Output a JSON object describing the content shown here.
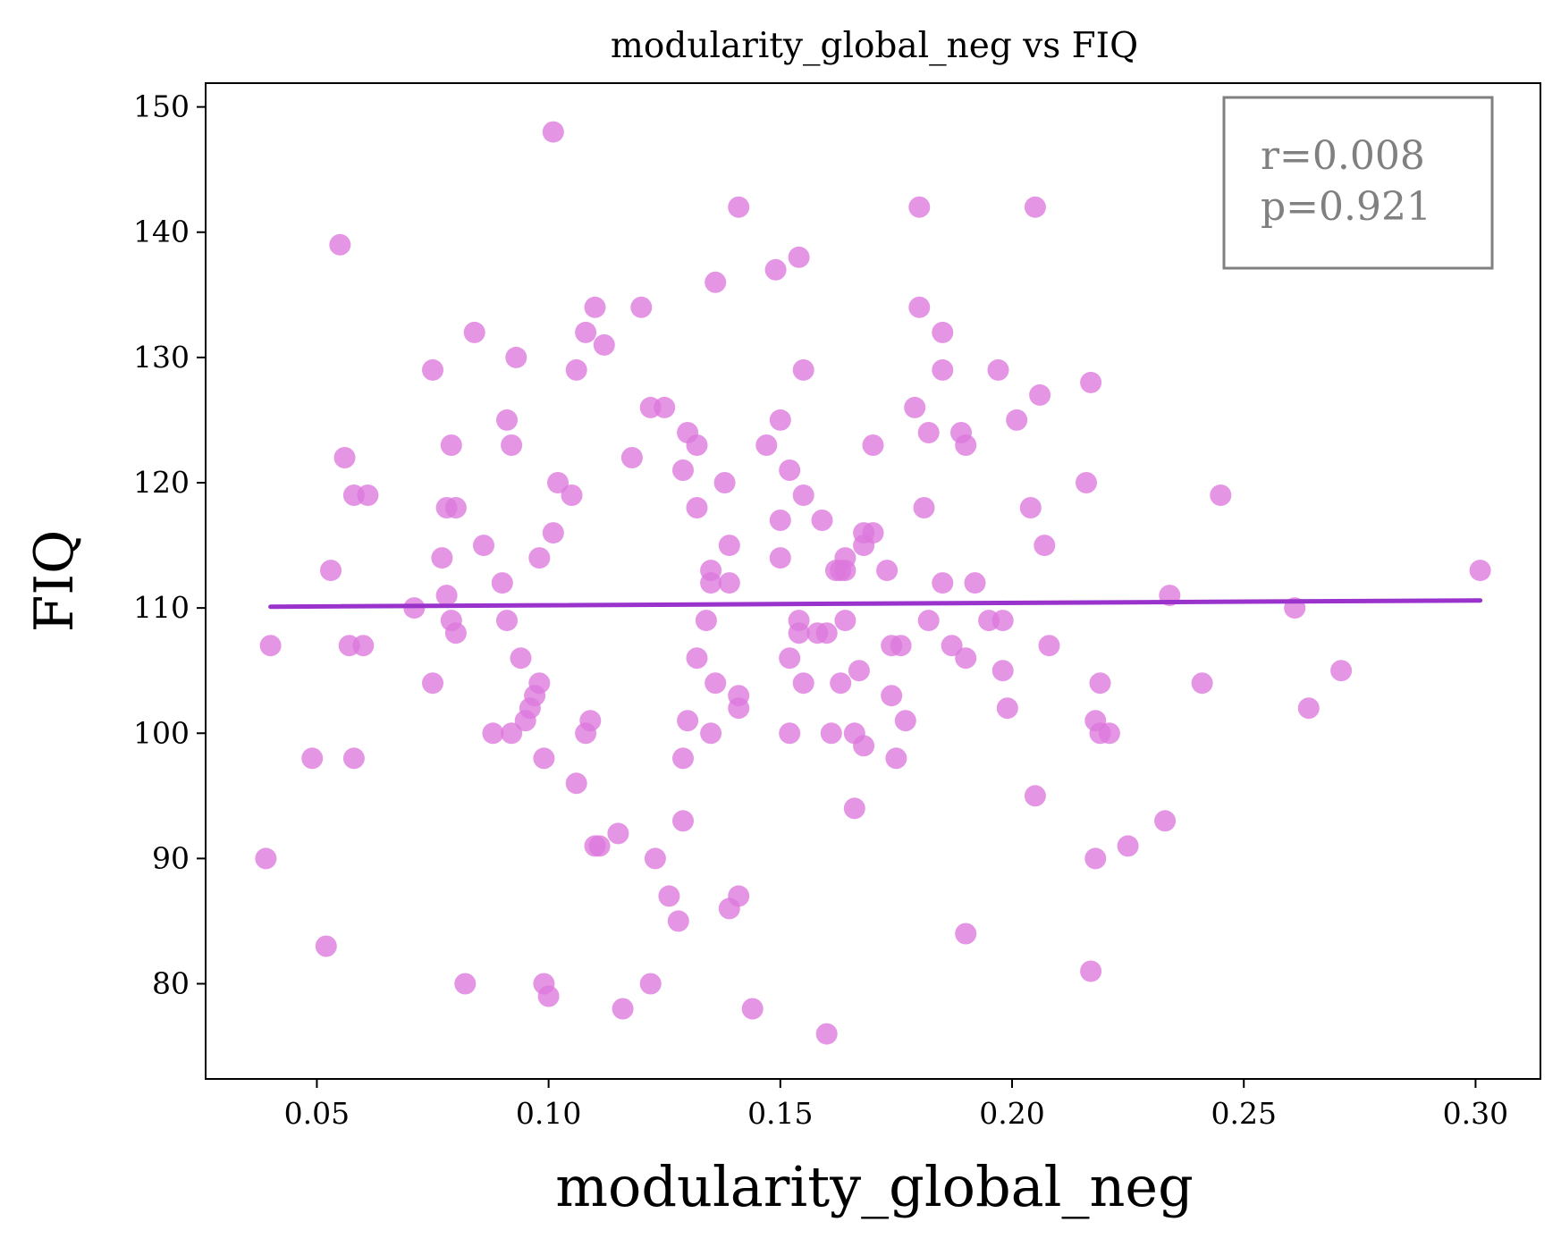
{
  "chart_data": {
    "type": "scatter",
    "title": "modularity_global_neg vs FIQ",
    "xlabel": "modularity_global_neg",
    "ylabel": "FIQ",
    "xlim": [
      0.026,
      0.314
    ],
    "ylim": [
      72.4,
      151.9
    ],
    "xticks": [
      0.05,
      0.1,
      0.15,
      0.2,
      0.25,
      0.3
    ],
    "xtick_labels": [
      "0.05",
      "0.10",
      "0.15",
      "0.20",
      "0.25",
      "0.30"
    ],
    "yticks": [
      80,
      90,
      100,
      110,
      120,
      130,
      140,
      150
    ],
    "ytick_labels": [
      "80",
      "90",
      "100",
      "110",
      "120",
      "130",
      "140",
      "150"
    ],
    "grid": false,
    "point_color": "#dd77dd",
    "line_color": "#9933cc",
    "points": [
      [
        0.039,
        90
      ],
      [
        0.04,
        107
      ],
      [
        0.049,
        98
      ],
      [
        0.052,
        83
      ],
      [
        0.053,
        113
      ],
      [
        0.055,
        139
      ],
      [
        0.056,
        122
      ],
      [
        0.057,
        107
      ],
      [
        0.058,
        119
      ],
      [
        0.058,
        98
      ],
      [
        0.06,
        107
      ],
      [
        0.061,
        119
      ],
      [
        0.071,
        110
      ],
      [
        0.075,
        129
      ],
      [
        0.075,
        104
      ],
      [
        0.077,
        114
      ],
      [
        0.078,
        111
      ],
      [
        0.078,
        118
      ],
      [
        0.079,
        109
      ],
      [
        0.079,
        123
      ],
      [
        0.08,
        118
      ],
      [
        0.08,
        108
      ],
      [
        0.082,
        80
      ],
      [
        0.084,
        132
      ],
      [
        0.086,
        115
      ],
      [
        0.088,
        100
      ],
      [
        0.09,
        112
      ],
      [
        0.091,
        125
      ],
      [
        0.091,
        109
      ],
      [
        0.092,
        123
      ],
      [
        0.092,
        100
      ],
      [
        0.093,
        130
      ],
      [
        0.094,
        106
      ],
      [
        0.095,
        101
      ],
      [
        0.096,
        102
      ],
      [
        0.097,
        103
      ],
      [
        0.098,
        104
      ],
      [
        0.098,
        114
      ],
      [
        0.099,
        98
      ],
      [
        0.099,
        80
      ],
      [
        0.1,
        79
      ],
      [
        0.101,
        148
      ],
      [
        0.101,
        116
      ],
      [
        0.102,
        120
      ],
      [
        0.105,
        119
      ],
      [
        0.106,
        129
      ],
      [
        0.106,
        96
      ],
      [
        0.108,
        100
      ],
      [
        0.108,
        132
      ],
      [
        0.109,
        101
      ],
      [
        0.11,
        134
      ],
      [
        0.11,
        91
      ],
      [
        0.111,
        91
      ],
      [
        0.112,
        131
      ],
      [
        0.115,
        92
      ],
      [
        0.116,
        78
      ],
      [
        0.118,
        122
      ],
      [
        0.12,
        134
      ],
      [
        0.122,
        126
      ],
      [
        0.122,
        80
      ],
      [
        0.123,
        90
      ],
      [
        0.125,
        126
      ],
      [
        0.126,
        87
      ],
      [
        0.128,
        85
      ],
      [
        0.129,
        121
      ],
      [
        0.129,
        93
      ],
      [
        0.129,
        98
      ],
      [
        0.13,
        124
      ],
      [
        0.13,
        101
      ],
      [
        0.132,
        123
      ],
      [
        0.132,
        118
      ],
      [
        0.132,
        106
      ],
      [
        0.134,
        109
      ],
      [
        0.135,
        112
      ],
      [
        0.135,
        113
      ],
      [
        0.136,
        136
      ],
      [
        0.135,
        100
      ],
      [
        0.136,
        104
      ],
      [
        0.138,
        120
      ],
      [
        0.139,
        112
      ],
      [
        0.139,
        115
      ],
      [
        0.139,
        86
      ],
      [
        0.141,
        103
      ],
      [
        0.141,
        102
      ],
      [
        0.141,
        142
      ],
      [
        0.141,
        87
      ],
      [
        0.144,
        78
      ],
      [
        0.147,
        123
      ],
      [
        0.149,
        137
      ],
      [
        0.15,
        125
      ],
      [
        0.15,
        117
      ],
      [
        0.15,
        114
      ],
      [
        0.152,
        121
      ],
      [
        0.152,
        106
      ],
      [
        0.152,
        100
      ],
      [
        0.154,
        138
      ],
      [
        0.154,
        108
      ],
      [
        0.154,
        109
      ],
      [
        0.155,
        129
      ],
      [
        0.155,
        119
      ],
      [
        0.155,
        104
      ],
      [
        0.158,
        108
      ],
      [
        0.159,
        117
      ],
      [
        0.16,
        108
      ],
      [
        0.16,
        76
      ],
      [
        0.161,
        100
      ],
      [
        0.162,
        113
      ],
      [
        0.163,
        104
      ],
      [
        0.163,
        113
      ],
      [
        0.164,
        113
      ],
      [
        0.164,
        109
      ],
      [
        0.164,
        114
      ],
      [
        0.166,
        100
      ],
      [
        0.166,
        94
      ],
      [
        0.167,
        105
      ],
      [
        0.168,
        115
      ],
      [
        0.168,
        99
      ],
      [
        0.168,
        116
      ],
      [
        0.17,
        116
      ],
      [
        0.17,
        123
      ],
      [
        0.173,
        113
      ],
      [
        0.174,
        107
      ],
      [
        0.174,
        103
      ],
      [
        0.175,
        98
      ],
      [
        0.176,
        107
      ],
      [
        0.177,
        101
      ],
      [
        0.179,
        126
      ],
      [
        0.18,
        142
      ],
      [
        0.18,
        134
      ],
      [
        0.181,
        118
      ],
      [
        0.182,
        109
      ],
      [
        0.182,
        124
      ],
      [
        0.185,
        112
      ],
      [
        0.185,
        129
      ],
      [
        0.185,
        132
      ],
      [
        0.187,
        107
      ],
      [
        0.189,
        124
      ],
      [
        0.19,
        106
      ],
      [
        0.19,
        123
      ],
      [
        0.19,
        84
      ],
      [
        0.192,
        112
      ],
      [
        0.195,
        109
      ],
      [
        0.197,
        129
      ],
      [
        0.198,
        105
      ],
      [
        0.198,
        109
      ],
      [
        0.199,
        102
      ],
      [
        0.201,
        125
      ],
      [
        0.204,
        118
      ],
      [
        0.205,
        142
      ],
      [
        0.205,
        95
      ],
      [
        0.206,
        127
      ],
      [
        0.207,
        115
      ],
      [
        0.208,
        107
      ],
      [
        0.216,
        120
      ],
      [
        0.217,
        128
      ],
      [
        0.217,
        81
      ],
      [
        0.218,
        101
      ],
      [
        0.218,
        90
      ],
      [
        0.219,
        104
      ],
      [
        0.219,
        100
      ],
      [
        0.221,
        100
      ],
      [
        0.225,
        91
      ],
      [
        0.233,
        93
      ],
      [
        0.234,
        111
      ],
      [
        0.241,
        104
      ],
      [
        0.245,
        119
      ],
      [
        0.261,
        110
      ],
      [
        0.264,
        102
      ],
      [
        0.271,
        105
      ],
      [
        0.301,
        113
      ]
    ],
    "regression_line": {
      "x": [
        0.04,
        0.301
      ],
      "y": [
        110.1,
        110.6
      ]
    },
    "annotation": {
      "lines": [
        "r=0.008",
        "p=0.921"
      ],
      "placement": "top-right"
    }
  }
}
